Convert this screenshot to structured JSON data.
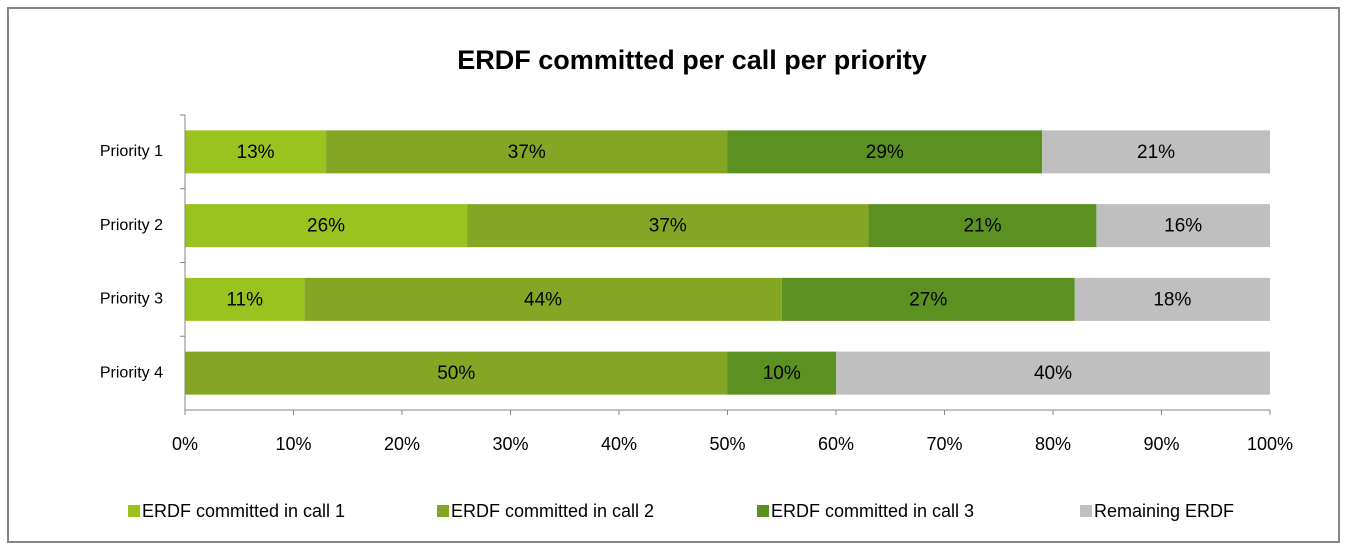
{
  "chart_data": {
    "type": "stacked-barh",
    "title": "ERDF committed per call per priority",
    "categories": [
      "Priority 1",
      "Priority 2",
      "Priority 3",
      "Priority 4"
    ],
    "series": [
      {
        "name": "ERDF committed in call 1",
        "color": "#9bc31f",
        "values": [
          13,
          26,
          11,
          null
        ],
        "value_labels": [
          "13%",
          "26%",
          "11%",
          null
        ]
      },
      {
        "name": "ERDF committed in call 2",
        "color": "#84a624",
        "values": [
          37,
          37,
          44,
          50
        ],
        "value_labels": [
          "37%",
          "37%",
          "44%",
          "50%"
        ]
      },
      {
        "name": "ERDF committed in call 3",
        "color": "#5a9120",
        "values": [
          29,
          21,
          27,
          10
        ],
        "value_labels": [
          "29%",
          "21%",
          "27%",
          "10%"
        ]
      },
      {
        "name": "Remaining ERDF",
        "color": "#bfbfbf",
        "values": [
          21,
          16,
          18,
          40
        ],
        "value_labels": [
          "21%",
          "16%",
          "18%",
          "40%"
        ]
      }
    ],
    "xlim": [
      0,
      100
    ],
    "xticks": [
      {
        "value": 0,
        "label": "0%"
      },
      {
        "value": 10,
        "label": "10%"
      },
      {
        "value": 20,
        "label": "20%"
      },
      {
        "value": 30,
        "label": "30%"
      },
      {
        "value": 40,
        "label": "40%"
      },
      {
        "value": 50,
        "label": "50%"
      },
      {
        "value": 60,
        "label": "60%"
      },
      {
        "value": 70,
        "label": "70%"
      },
      {
        "value": 80,
        "label": "80%"
      },
      {
        "value": 90,
        "label": "90%"
      },
      {
        "value": 100,
        "label": "100%"
      }
    ],
    "legend": "bottom"
  }
}
